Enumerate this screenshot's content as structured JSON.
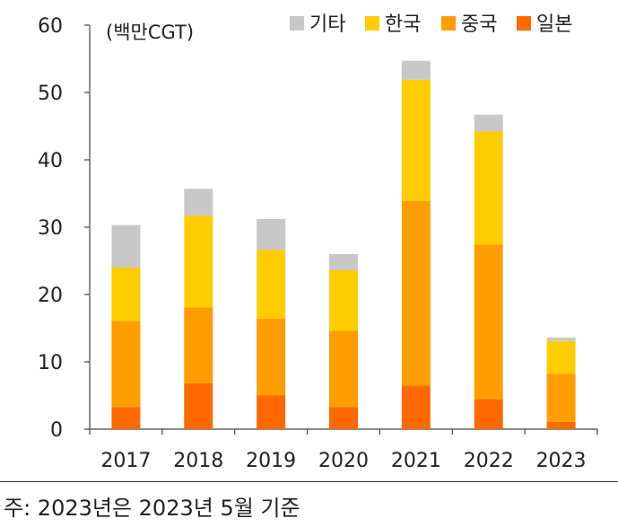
{
  "chart_data": {
    "type": "bar",
    "stacked": true,
    "unit_label": "(백만CGT)",
    "categories": [
      "2017",
      "2018",
      "2019",
      "2020",
      "2021",
      "2022",
      "2023"
    ],
    "series": [
      {
        "name": "일본",
        "color": "#ff6a00",
        "values": [
          3.3,
          6.8,
          5.0,
          3.3,
          6.5,
          4.5,
          1.1
        ]
      },
      {
        "name": "중국",
        "color": "#ff9e00",
        "values": [
          12.8,
          11.3,
          11.4,
          11.3,
          27.4,
          22.9,
          7.1
        ]
      },
      {
        "name": "한국",
        "color": "#ffcc00",
        "values": [
          7.9,
          13.6,
          10.2,
          9.0,
          18.0,
          16.8,
          4.9
        ]
      },
      {
        "name": "기타",
        "color": "#c8c8c8",
        "values": [
          6.3,
          4.0,
          4.6,
          2.4,
          2.8,
          2.5,
          0.5
        ]
      }
    ],
    "legend_order": [
      "기타",
      "한국",
      "중국",
      "일본"
    ],
    "legend_position": "top-right",
    "ylim": [
      0,
      60
    ],
    "yticks": [
      0,
      10,
      20,
      30,
      40,
      50,
      60
    ],
    "grid": false
  },
  "footnote": "주: 2023년은 2023년 5월 기준"
}
